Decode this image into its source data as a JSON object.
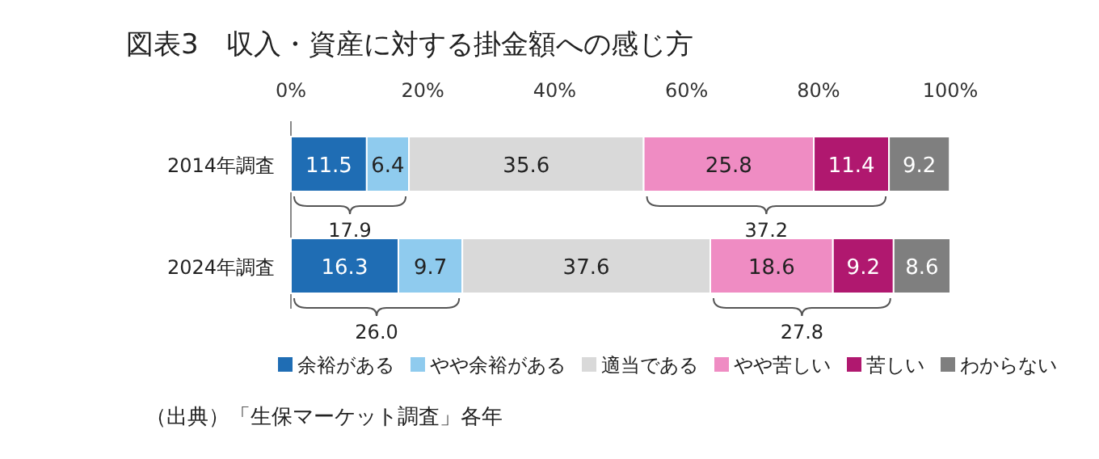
{
  "chart_data": {
    "type": "bar",
    "orientation": "horizontal",
    "stacked": true,
    "title": "図表3　収入・資産に対する掛金額への感じ方",
    "categories": [
      "2014年調査",
      "2024年調査"
    ],
    "series": [
      {
        "name": "余裕がある",
        "color": "#1f6db4",
        "values": [
          11.5,
          16.3
        ]
      },
      {
        "name": "やや余裕がある",
        "color": "#8fcbee",
        "values": [
          6.4,
          9.7
        ]
      },
      {
        "name": "適当である",
        "color": "#d9d9d9",
        "values": [
          35.6,
          37.6
        ]
      },
      {
        "name": "やや苦しい",
        "color": "#ef8cc3",
        "values": [
          25.8,
          18.6
        ]
      },
      {
        "name": "苦しい",
        "color": "#b0186f",
        "values": [
          11.4,
          9.2
        ]
      },
      {
        "name": "わからない",
        "color": "#7f7f7f",
        "values": [
          9.2,
          8.6
        ]
      }
    ],
    "xlim": [
      0,
      100
    ],
    "xticks": [
      {
        "value": 0,
        "label": "0%"
      },
      {
        "value": 20,
        "label": "20%"
      },
      {
        "value": 40,
        "label": "40%"
      },
      {
        "value": 60,
        "label": "60%"
      },
      {
        "value": 80,
        "label": "80%"
      },
      {
        "value": 100,
        "label": "100%"
      }
    ],
    "data_labels": true,
    "legend": "bottom",
    "grid": false,
    "annotations": [
      "17.9",
      "37.2",
      "26.0",
      "27.8",
      "（出典）「生保マーケット調査」各年"
    ]
  }
}
